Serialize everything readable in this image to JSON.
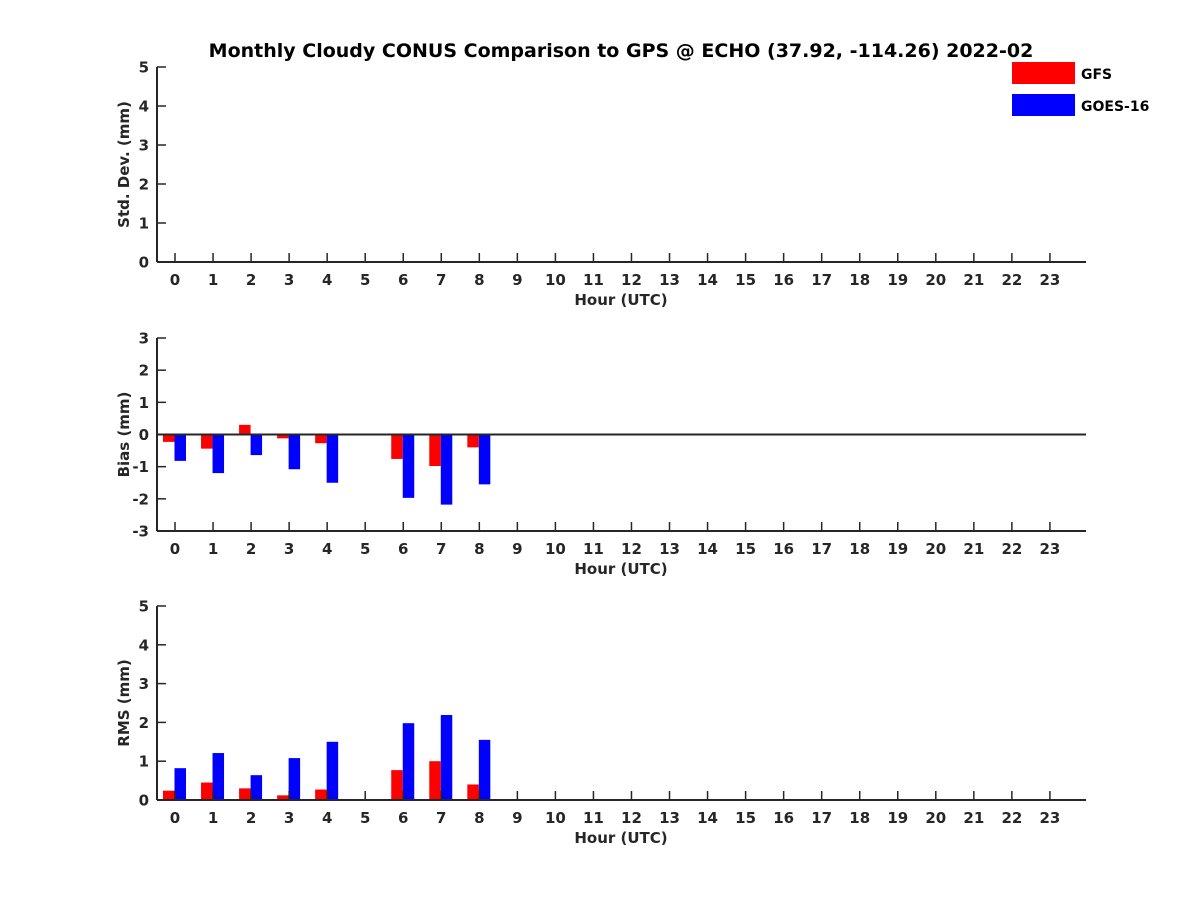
{
  "chart_data": [
    {
      "type": "bar",
      "title": "Monthly Cloudy CONUS Comparison to GPS @ ECHO (37.92, -114.26) 2022-02",
      "xlabel": "Hour (UTC)",
      "ylabel": "Std. Dev. (mm)",
      "categories": [
        "0",
        "1",
        "2",
        "3",
        "4",
        "5",
        "6",
        "7",
        "8",
        "9",
        "10",
        "11",
        "12",
        "13",
        "14",
        "15",
        "16",
        "17",
        "18",
        "19",
        "20",
        "21",
        "22",
        "23"
      ],
      "ylim": [
        0,
        5
      ],
      "yticks": [
        "0",
        "1",
        "2",
        "3",
        "4",
        "5"
      ],
      "series": [
        {
          "name": "GFS",
          "values": [
            null,
            null,
            null,
            null,
            null,
            null,
            null,
            null,
            null,
            null,
            null,
            null,
            null,
            null,
            null,
            null,
            null,
            null,
            null,
            null,
            null,
            null,
            null,
            null
          ]
        },
        {
          "name": "GOES-16",
          "values": [
            null,
            null,
            null,
            null,
            null,
            null,
            null,
            null,
            null,
            null,
            null,
            null,
            null,
            null,
            null,
            null,
            null,
            null,
            null,
            null,
            null,
            null,
            null,
            null
          ]
        }
      ]
    },
    {
      "type": "bar",
      "title": "",
      "xlabel": "Hour (UTC)",
      "ylabel": "Bias (mm)",
      "categories": [
        "0",
        "1",
        "2",
        "3",
        "4",
        "5",
        "6",
        "7",
        "8",
        "9",
        "10",
        "11",
        "12",
        "13",
        "14",
        "15",
        "16",
        "17",
        "18",
        "19",
        "20",
        "21",
        "22",
        "23"
      ],
      "ylim": [
        -3,
        3
      ],
      "yticks": [
        "-3",
        "-2",
        "-1",
        "0",
        "1",
        "2",
        "3"
      ],
      "zero_line": true,
      "series": [
        {
          "name": "GFS",
          "values": [
            -0.23,
            -0.44,
            0.3,
            -0.12,
            -0.27,
            null,
            -0.76,
            -0.98,
            -0.4,
            null,
            null,
            null,
            null,
            null,
            null,
            null,
            null,
            null,
            null,
            null,
            null,
            null,
            null,
            null
          ]
        },
        {
          "name": "GOES-16",
          "values": [
            -0.82,
            -1.2,
            -0.64,
            -1.08,
            -1.5,
            null,
            -1.97,
            -2.18,
            -1.55,
            null,
            null,
            null,
            null,
            null,
            null,
            null,
            null,
            null,
            null,
            null,
            null,
            null,
            null,
            null
          ]
        }
      ]
    },
    {
      "type": "bar",
      "title": "",
      "xlabel": "Hour (UTC)",
      "ylabel": "RMS (mm)",
      "categories": [
        "0",
        "1",
        "2",
        "3",
        "4",
        "5",
        "6",
        "7",
        "8",
        "9",
        "10",
        "11",
        "12",
        "13",
        "14",
        "15",
        "16",
        "17",
        "18",
        "19",
        "20",
        "21",
        "22",
        "23"
      ],
      "ylim": [
        0,
        5
      ],
      "yticks": [
        "0",
        "1",
        "2",
        "3",
        "4",
        "5"
      ],
      "series": [
        {
          "name": "GFS",
          "values": [
            0.24,
            0.45,
            0.3,
            0.12,
            0.27,
            null,
            0.77,
            1.0,
            0.4,
            null,
            null,
            null,
            null,
            null,
            null,
            null,
            null,
            null,
            null,
            null,
            null,
            null,
            null,
            null
          ]
        },
        {
          "name": "GOES-16",
          "values": [
            0.82,
            1.21,
            0.64,
            1.08,
            1.5,
            null,
            1.98,
            2.19,
            1.55,
            null,
            null,
            null,
            null,
            null,
            null,
            null,
            null,
            null,
            null,
            null,
            null,
            null,
            null,
            null
          ]
        }
      ]
    }
  ],
  "legend": {
    "placement": "top-right",
    "items": [
      {
        "label": "GFS",
        "color": "#ff0000"
      },
      {
        "label": "GOES-16",
        "color": "#0000ff"
      }
    ]
  },
  "colors": {
    "axis": "#262626",
    "text": "#262626"
  }
}
